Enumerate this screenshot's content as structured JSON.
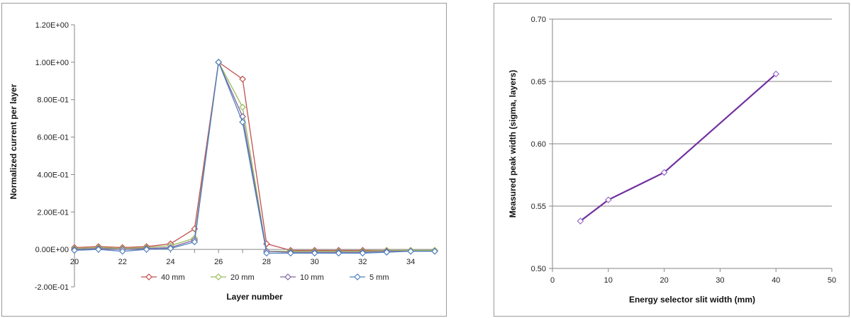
{
  "chart_data": [
    {
      "type": "line",
      "title": "",
      "xlabel": "Layer number",
      "ylabel": "Normalized current per layer",
      "xlim": [
        20,
        35
      ],
      "ylim": [
        -0.2,
        1.2
      ],
      "xticks": [
        20,
        22,
        24,
        26,
        28,
        30,
        32,
        34
      ],
      "xtick_labels": [
        "20",
        "22",
        "24",
        "26",
        "28",
        "30",
        "32",
        "34"
      ],
      "yticks": [
        -0.2,
        0,
        0.2,
        0.4,
        0.6,
        0.8,
        1.0,
        1.2
      ],
      "ytick_labels": [
        "-2.00E-01",
        "0.00E+00",
        "2.00E-01",
        "4.00E-01",
        "6.00E-01",
        "8.00E-01",
        "1.00E+00",
        "1.20E+00"
      ],
      "grid": "none",
      "legend": "bottom",
      "x": [
        20,
        21,
        22,
        23,
        24,
        25,
        26,
        27,
        28,
        29,
        30,
        31,
        32,
        33,
        34,
        35
      ],
      "series": [
        {
          "name": "40 mm",
          "color": "#c0504d",
          "values": [
            0.01,
            0.015,
            0.01,
            0.015,
            0.03,
            0.11,
            1.0,
            0.91,
            0.03,
            -0.005,
            -0.005,
            -0.005,
            -0.005,
            -0.005,
            -0.005,
            -0.005
          ]
        },
        {
          "name": "20 mm",
          "color": "#9bbb59",
          "values": [
            0.005,
            0.01,
            0.005,
            0.01,
            0.02,
            0.06,
            1.0,
            0.76,
            -0.01,
            -0.01,
            -0.01,
            -0.01,
            -0.01,
            -0.005,
            -0.005,
            -0.005
          ]
        },
        {
          "name": "10 mm",
          "color": "#8064a2",
          "values": [
            0.0,
            0.005,
            0.0,
            0.005,
            0.01,
            0.05,
            1.0,
            0.71,
            -0.01,
            -0.015,
            -0.015,
            -0.015,
            -0.015,
            -0.01,
            -0.01,
            -0.01
          ]
        },
        {
          "name": "5 mm",
          "color": "#4f81bd",
          "values": [
            -0.005,
            0.0,
            -0.01,
            0.0,
            0.005,
            0.04,
            1.0,
            0.68,
            -0.02,
            -0.02,
            -0.02,
            -0.02,
            -0.02,
            -0.015,
            -0.01,
            -0.01
          ]
        }
      ]
    },
    {
      "type": "line",
      "title": "",
      "xlabel": "Energy selector slit width (mm)",
      "ylabel": "Measured peak width (sigma, layers)",
      "xlim": [
        0,
        50
      ],
      "ylim": [
        0.5,
        0.7
      ],
      "xticks": [
        0,
        10,
        20,
        30,
        40,
        50
      ],
      "xtick_labels": [
        "0",
        "10",
        "20",
        "30",
        "40",
        "50"
      ],
      "yticks": [
        0.5,
        0.55,
        0.6,
        0.65,
        0.7
      ],
      "ytick_labels": [
        "0.50",
        "0.55",
        "0.60",
        "0.65",
        "0.70"
      ],
      "grid": "horizontal",
      "legend": "none",
      "series": [
        {
          "color": "#7030a0",
          "x": [
            5,
            10,
            20,
            40
          ],
          "values": [
            0.538,
            0.555,
            0.577,
            0.656
          ]
        }
      ]
    }
  ]
}
